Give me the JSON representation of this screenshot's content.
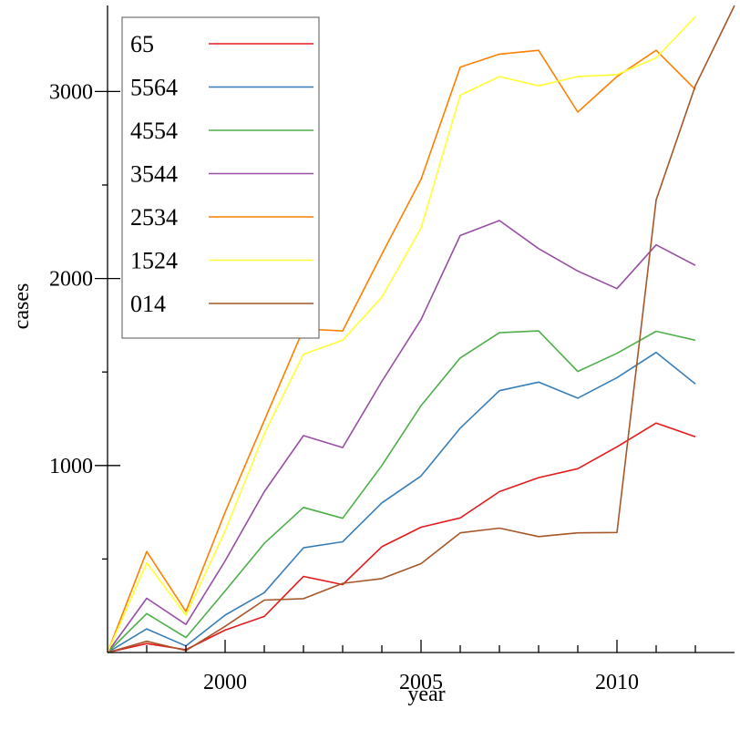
{
  "chart_data": {
    "type": "line",
    "title": "",
    "xlabel": "year",
    "ylabel": "cases",
    "xlim": [
      1997,
      2013
    ],
    "ylim": [
      0,
      3460
    ],
    "grid": false,
    "legend_position": "top-left",
    "x_ticks": [
      {
        "value": 1998,
        "label": ""
      },
      {
        "value": 1999,
        "label": ""
      },
      {
        "value": 2000,
        "label": "2000"
      },
      {
        "value": 2001,
        "label": ""
      },
      {
        "value": 2002,
        "label": ""
      },
      {
        "value": 2003,
        "label": ""
      },
      {
        "value": 2004,
        "label": ""
      },
      {
        "value": 2005,
        "label": "2005"
      },
      {
        "value": 2006,
        "label": ""
      },
      {
        "value": 2007,
        "label": ""
      },
      {
        "value": 2008,
        "label": ""
      },
      {
        "value": 2009,
        "label": ""
      },
      {
        "value": 2010,
        "label": "2010"
      },
      {
        "value": 2011,
        "label": ""
      },
      {
        "value": 2012,
        "label": ""
      }
    ],
    "y_ticks": [
      {
        "value": 500,
        "label": ""
      },
      {
        "value": 1000,
        "label": "1000"
      },
      {
        "value": 1500,
        "label": ""
      },
      {
        "value": 2000,
        "label": "2000"
      },
      {
        "value": 2500,
        "label": ""
      },
      {
        "value": 3000,
        "label": "3000"
      }
    ],
    "x": [
      1997,
      1998,
      1999,
      2000,
      2001,
      2002,
      2003,
      2004,
      2005,
      2006,
      2007,
      2008,
      2009,
      2010,
      2011,
      2012
    ],
    "series": [
      {
        "name": "65",
        "color": "#e41a1c",
        "values": [
          0,
          48,
          15,
          120,
          193,
          407,
          363,
          566,
          670,
          720,
          860,
          935,
          983,
          1100,
          1227,
          1154
        ]
      },
      {
        "name": "5564",
        "color": "#377eb8",
        "values": [
          0,
          126,
          35,
          200,
          320,
          560,
          592,
          800,
          944,
          1200,
          1400,
          1446,
          1360,
          1470,
          1605,
          1436
        ]
      },
      {
        "name": "4554",
        "color": "#4daf4a",
        "values": [
          0,
          208,
          80,
          329,
          584,
          776,
          718,
          1000,
          1320,
          1575,
          1710,
          1720,
          1503,
          1600,
          1718,
          1670
        ]
      },
      {
        "name": "3544",
        "color": "#984ea3",
        "values": [
          0,
          290,
          150,
          490,
          860,
          1160,
          1096,
          1450,
          1780,
          2230,
          2310,
          2160,
          2040,
          1946,
          2180,
          2070
        ]
      },
      {
        "name": "2534",
        "color": "#ff7f00",
        "values": [
          0,
          540,
          220,
          750,
          1240,
          1730,
          1720,
          2130,
          2530,
          3130,
          3200,
          3220,
          2890,
          3080,
          3220,
          3010
        ]
      },
      {
        "name": "1524",
        "color": "#ffff33",
        "values": [
          0,
          480,
          200,
          650,
          1170,
          1595,
          1670,
          1900,
          2270,
          2980,
          3080,
          3030,
          3080,
          3090,
          3180,
          3400
        ]
      },
      {
        "name": "014",
        "color": "#a65628",
        "values": [
          0,
          60,
          10,
          140,
          280,
          288,
          370,
          395,
          475,
          640,
          665,
          620,
          640,
          642,
          2420,
          3030,
          3460
        ],
        "x": [
          1997,
          1998,
          1999,
          2000,
          2001,
          2002,
          2003,
          2004,
          2005,
          2006,
          2007,
          2008,
          2009,
          2010,
          2011,
          2012,
          2013
        ]
      }
    ]
  }
}
